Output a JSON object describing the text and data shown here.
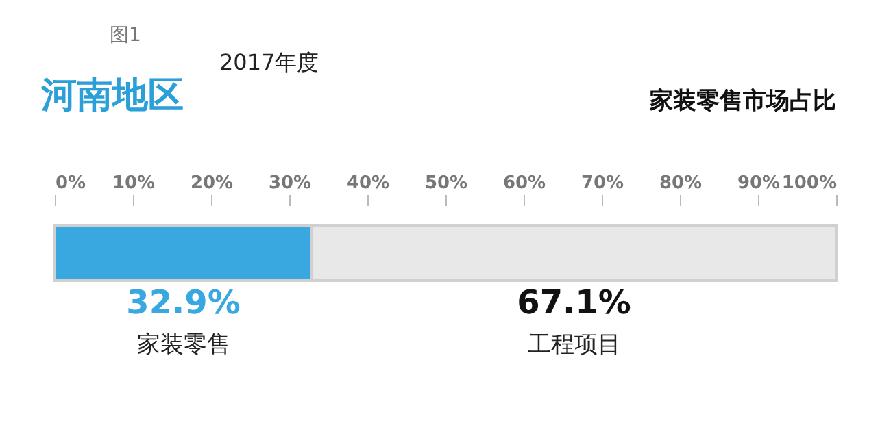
{
  "chart_data": {
    "type": "bar",
    "orientation": "horizontal",
    "stacked": true,
    "title": "河南地区",
    "subtitle": "2017年度",
    "annotations": [
      "图1",
      "家装零售市场占比"
    ],
    "categories": [
      null
    ],
    "series": [
      {
        "name": "家装零售",
        "color": "#3aa8e0",
        "values": [
          32.9
        ],
        "value_labels": [
          "32.9%"
        ]
      },
      {
        "name": "工程项目",
        "color": "#e8e8e8",
        "values": [
          67.1
        ],
        "value_labels": [
          "67.1%"
        ]
      }
    ],
    "xlim": [
      0,
      100
    ],
    "xticks": [
      {
        "value": 0,
        "label": "0%"
      },
      {
        "value": 10,
        "label": "10%"
      },
      {
        "value": 20,
        "label": "20%"
      },
      {
        "value": 30,
        "label": "30%"
      },
      {
        "value": 40,
        "label": "40%"
      },
      {
        "value": 50,
        "label": "50%"
      },
      {
        "value": 60,
        "label": "60%"
      },
      {
        "value": 70,
        "label": "70%"
      },
      {
        "value": 80,
        "label": "80%"
      },
      {
        "value": 90,
        "label": "90%"
      },
      {
        "value": 100,
        "label": "100%"
      }
    ],
    "legend": false,
    "grid": false
  }
}
